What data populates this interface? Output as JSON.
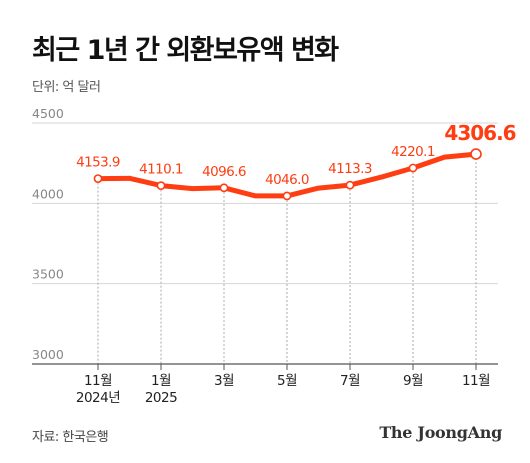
{
  "title": "최근 1년 간 외환보유액 변화",
  "unit_label": "단위: 억 달러",
  "source": "자료: 한국은행",
  "brand": "The JoongAng",
  "colors": {
    "line": "#ff3d12",
    "grid": "#d6d6d6",
    "axis": "#999999",
    "text_muted": "#888888"
  },
  "chart_data": {
    "type": "line",
    "xlabel": "",
    "ylabel": "",
    "ylim": [
      3000,
      4500
    ],
    "yticks": [
      3000,
      3500,
      4000,
      4500
    ],
    "grid": true,
    "x_tick_labels": [
      {
        "line1": "11월",
        "line2": "2024년"
      },
      {
        "line1": "1월",
        "line2": "2025"
      },
      {
        "line1": "3월",
        "line2": ""
      },
      {
        "line1": "5월",
        "line2": ""
      },
      {
        "line1": "7월",
        "line2": ""
      },
      {
        "line1": "9월",
        "line2": ""
      },
      {
        "line1": "11월",
        "line2": ""
      }
    ],
    "series": [
      {
        "months": [
          "2024-11",
          "2024-12",
          "2025-01",
          "2025-02",
          "2025-03",
          "2025-04",
          "2025-05",
          "2025-06",
          "2025-07",
          "2025-08",
          "2025-09",
          "2025-10",
          "2025-11"
        ],
        "values": [
          4153.9,
          4156.0,
          4110.1,
          4092.0,
          4096.6,
          4046.0,
          4046.0,
          4095.0,
          4113.3,
          4163.0,
          4220.1,
          4288.0,
          4306.6
        ]
      }
    ],
    "labeled_points": [
      {
        "month": "2024-11",
        "label": "4153.9"
      },
      {
        "month": "2025-01",
        "label": "4110.1"
      },
      {
        "month": "2025-03",
        "label": "4096.6"
      },
      {
        "month": "2025-05",
        "label": "4046.0"
      },
      {
        "month": "2025-07",
        "label": "4113.3"
      },
      {
        "month": "2025-09",
        "label": "4220.1"
      },
      {
        "month": "2025-11",
        "label": "4306.6",
        "emphasis": true
      }
    ]
  }
}
